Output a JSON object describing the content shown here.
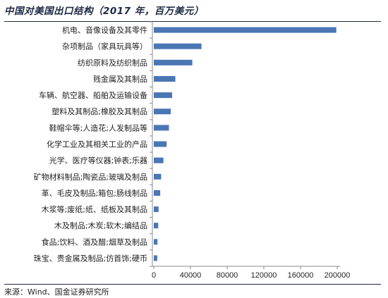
{
  "chart_data": {
    "type": "bar",
    "orientation": "horizontal",
    "title": "中国对美国出口结构（2017 年，百万美元）",
    "categories": [
      "机电、音像设备及其零件",
      "杂项制品（家具玩具等）",
      "纺织原料及纺织制品",
      "贱金属及其制品",
      "车辆、航空器、船舶及运输设备",
      "塑料及其制品;橡胶及其制品",
      "鞋帽伞等;人造花;人发制品等",
      "化学工业及其相关工业的产品",
      "光学、医疗等仪器;钟表;乐器",
      "矿物材料制品;陶瓷品;玻璃及制品",
      "革、毛皮及制品;箱包;肠线制品",
      "木浆等;废纸;纸、纸板及其制品",
      "木及制品;木炭;软木;编结品",
      "食品;饮料、酒及醋;烟草及制品",
      "珠宝、贵金属及制品;仿首饰;硬币"
    ],
    "values": [
      199000,
      52000,
      42000,
      23500,
      20000,
      18500,
      16500,
      14000,
      10500,
      8000,
      7000,
      5200,
      4800,
      4000,
      3800
    ],
    "xlim": [
      0,
      200000
    ],
    "xticks": [
      "0",
      "40000",
      "80000",
      "120000",
      "160000",
      "200000"
    ],
    "xlabel": "",
    "ylabel": "",
    "grid": false,
    "legend": "none",
    "bar_color": "#4a76b4"
  },
  "source": "来源：Wind、国金证券研究所"
}
